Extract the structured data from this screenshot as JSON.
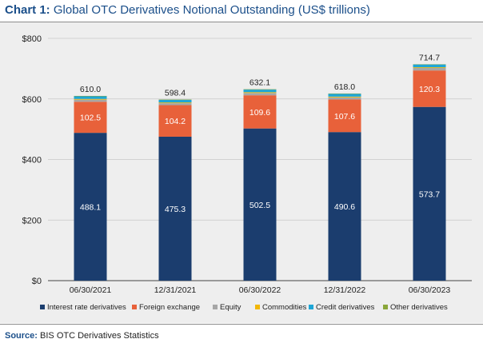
{
  "header": {
    "title_lead": "Chart 1:",
    "title_rest": "Global OTC Derivatives Notional Outstanding (US$ trillions)"
  },
  "footer": {
    "source_lead": "Source:",
    "source_text": "BIS OTC Derivatives Statistics"
  },
  "chart_data": {
    "type": "bar",
    "stacked": true,
    "categories": [
      "06/30/2021",
      "12/31/2021",
      "06/30/2022",
      "12/31/2022",
      "06/30/2023"
    ],
    "totals": [
      "610.0",
      "598.4",
      "632.1",
      "618.0",
      "714.7"
    ],
    "total_values": [
      610.0,
      598.4,
      632.1,
      618.0,
      714.7
    ],
    "series": [
      {
        "name": "Interest rate derivatives",
        "color": "#1b3d6e",
        "values": [
          488.1,
          475.3,
          502.5,
          490.6,
          573.7
        ],
        "labels": [
          "488.1",
          "475.3",
          "502.5",
          "490.6",
          "573.7"
        ]
      },
      {
        "name": "Foreign exchange",
        "color": "#e8613a",
        "values": [
          102.5,
          104.2,
          109.6,
          107.6,
          120.3
        ],
        "labels": [
          "102.5",
          "104.2",
          "109.6",
          "107.6",
          "120.3"
        ]
      },
      {
        "name": "Equity",
        "color": "#a6a6a6",
        "values": [
          7.0,
          6.5,
          7.5,
          7.0,
          8.3
        ]
      },
      {
        "name": "Commodities",
        "color": "#f2b705",
        "values": [
          2.5,
          2.4,
          2.7,
          2.5,
          2.4
        ]
      },
      {
        "name": "Credit derivatives",
        "color": "#1ea6d6",
        "values": [
          8.5,
          8.8,
          8.5,
          9.0,
          9.0
        ]
      },
      {
        "name": "Other derivatives",
        "color": "#8aa63a",
        "values": [
          1.4,
          1.2,
          1.3,
          1.3,
          1.0
        ]
      }
    ],
    "y_ticks": [
      {
        "value": 0,
        "label": "$0"
      },
      {
        "value": 200,
        "label": "$200"
      },
      {
        "value": 400,
        "label": "$400"
      },
      {
        "value": 600,
        "label": "$600"
      },
      {
        "value": 800,
        "label": "$800"
      }
    ],
    "ylim": [
      0,
      800
    ],
    "grid": true,
    "legend_position": "bottom"
  }
}
